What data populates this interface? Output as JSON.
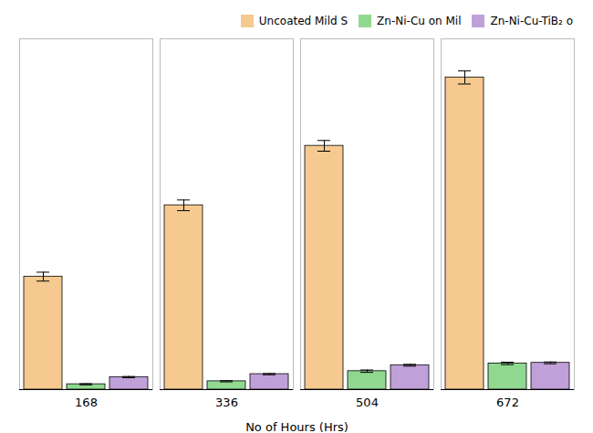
{
  "chart_data": {
    "type": "bar",
    "xlabel": "No of Hours (Hrs)",
    "categories": [
      168,
      336,
      504,
      672
    ],
    "series": [
      {
        "name": "Uncoated Mild S",
        "color": "#F5C990",
        "values": [
          0.38,
          0.62,
          0.82,
          1.05
        ],
        "errors": [
          0.015,
          0.018,
          0.018,
          0.022
        ]
      },
      {
        "name": "Zn-Ni-Cu on Mil",
        "color": "#90D890",
        "values": [
          0.018,
          0.028,
          0.062,
          0.088
        ],
        "errors": [
          0.002,
          0.002,
          0.004,
          0.004
        ]
      },
      {
        "name": "Zn-Ni-Cu-TiB₂ o",
        "color": "#C0A0D8",
        "values": [
          0.042,
          0.052,
          0.082,
          0.09
        ],
        "errors": [
          0.002,
          0.002,
          0.003,
          0.003
        ]
      }
    ],
    "ylim": [
      0,
      1.18
    ],
    "tick_labels": "x",
    "legend": "upper right",
    "grid": false
  }
}
